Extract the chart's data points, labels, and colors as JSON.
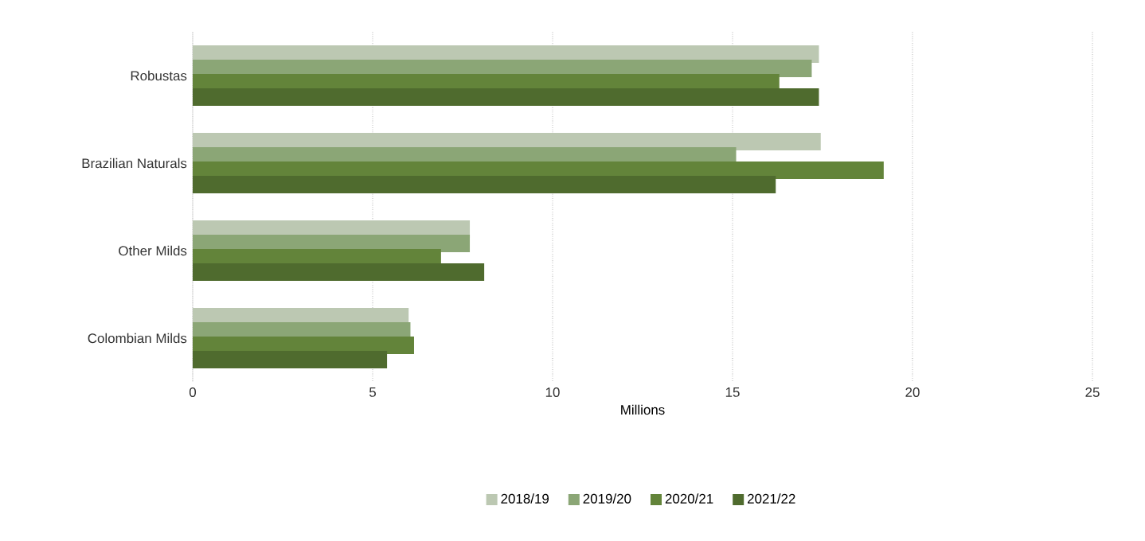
{
  "chart_data": {
    "type": "bar",
    "orientation": "horizontal",
    "categories": [
      "Robustas",
      "Brazilian Naturals",
      "Other Milds",
      "Colombian Milds"
    ],
    "series": [
      {
        "name": "2018/19",
        "color": "#bcc8b2",
        "values": [
          17.4,
          17.45,
          7.7,
          6.0
        ]
      },
      {
        "name": "2019/20",
        "color": "#8ba676",
        "values": [
          17.2,
          15.1,
          7.7,
          6.05
        ]
      },
      {
        "name": "2020/21",
        "color": "#63843a",
        "values": [
          16.3,
          19.2,
          6.9,
          6.15
        ]
      },
      {
        "name": "2021/22",
        "color": "#4f6b2e",
        "values": [
          17.4,
          16.2,
          8.1,
          5.4
        ]
      }
    ],
    "xlabel": "Millions",
    "xlim": [
      0,
      25
    ],
    "xticks": [
      0,
      5,
      10,
      15,
      20,
      25
    ],
    "grid": "x",
    "legend": "bottom"
  }
}
